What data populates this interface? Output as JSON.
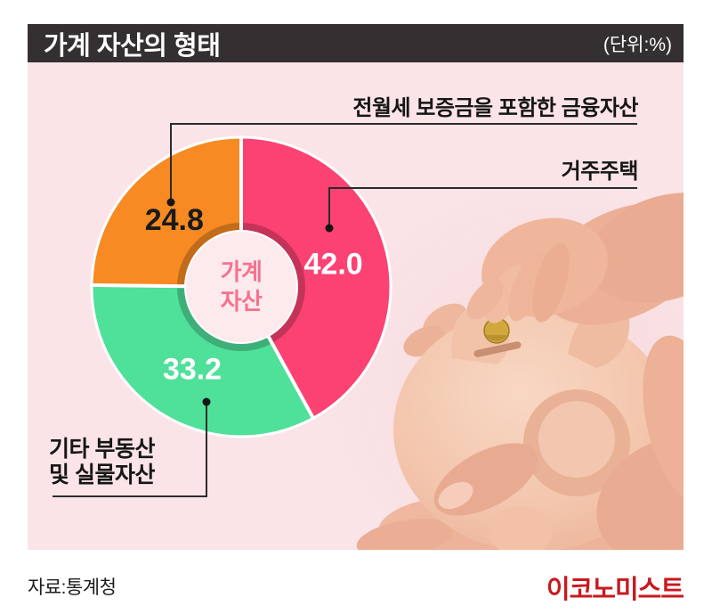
{
  "header": {
    "title": "가계 자산의 형태",
    "unit": "(단위:%)"
  },
  "chart_data": {
    "type": "pie",
    "subtype": "donut",
    "title": "가계 자산의 형태",
    "unit": "%",
    "center_label": "가계\n자산",
    "start_angle_deg": -90,
    "direction": "clockwise",
    "segments": [
      {
        "label": "거주주택",
        "value": 42.0,
        "color": "#FC4272",
        "value_color": "#ffffff"
      },
      {
        "label": "기타 부동산\n및 실물자산",
        "value": 33.2,
        "color": "#4FE09A",
        "value_color": "#ffffff"
      },
      {
        "label": "전월세 보증금을 포함한 금융자산",
        "value": 24.8,
        "color": "#F78A22",
        "value_color": "#1a1a1a"
      }
    ]
  },
  "footer": {
    "source": "자료:통계청",
    "logo": "이코노미스트"
  },
  "colors": {
    "panel_bg": "#FAE4E7",
    "title_bar_bg": "#343031",
    "pink": "#FC4272",
    "green": "#4FE09A",
    "orange": "#F78A22",
    "center_text_pink": "#F6718F",
    "logo_red": "#C9191E"
  }
}
